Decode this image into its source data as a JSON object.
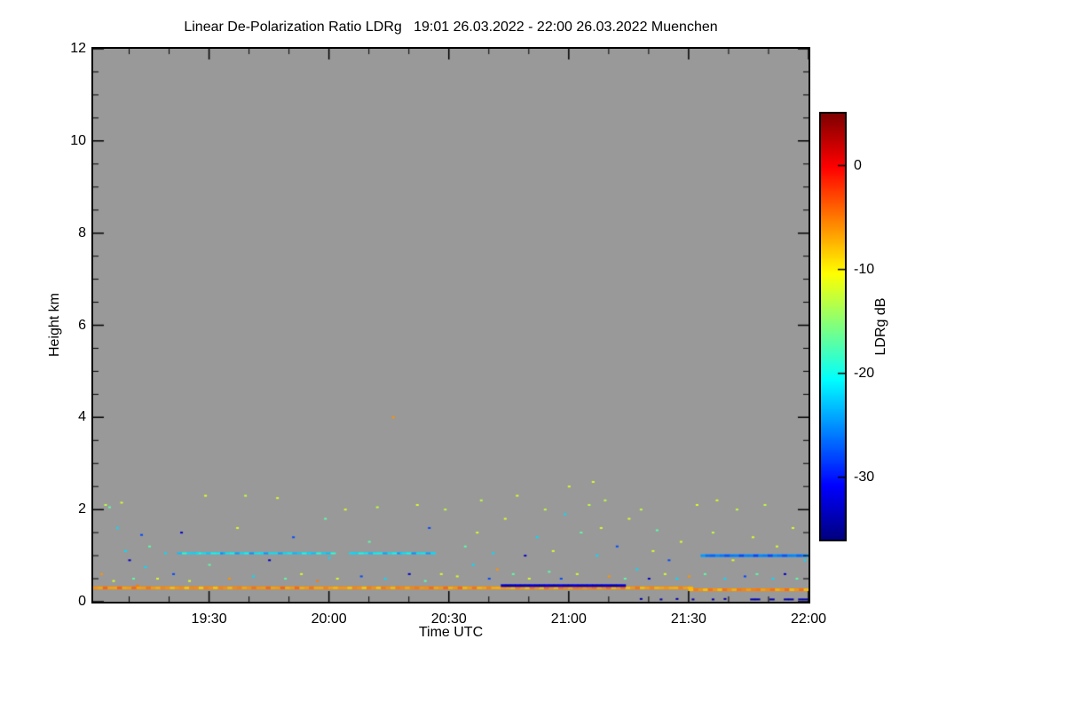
{
  "chart_data": {
    "type": "heatmap",
    "title": "Linear De-Polarization Ratio LDRg   19:01 26.03.2022 - 22:00 26.03.2022 Muenchen",
    "xlabel": "Time UTC",
    "ylabel": "Height km",
    "colorbar_label": "LDRg dB",
    "time_start_utc": "19:01",
    "time_end_utc": "22:00",
    "date": "26.03.2022",
    "station": "Muenchen",
    "no_data_color": "#999999",
    "colormap": "jet",
    "x_axis": {
      "unit": "minutes since 19:01 UTC",
      "min": 0,
      "max": 179,
      "major_ticks": [
        {
          "minutes": 29,
          "label": "19:30"
        },
        {
          "minutes": 59,
          "label": "20:00"
        },
        {
          "minutes": 89,
          "label": "20:30"
        },
        {
          "minutes": 119,
          "label": "21:00"
        },
        {
          "minutes": 149,
          "label": "21:30"
        },
        {
          "minutes": 179,
          "label": "22:00"
        }
      ],
      "minor_tick_every_min": 10
    },
    "y_axis": {
      "unit": "km",
      "min": 0,
      "max": 12,
      "major_ticks": [
        {
          "km": 0,
          "label": "0"
        },
        {
          "km": 2,
          "label": "2"
        },
        {
          "km": 4,
          "label": "4"
        },
        {
          "km": 6,
          "label": "6"
        },
        {
          "km": 8,
          "label": "8"
        },
        {
          "km": 10,
          "label": "10"
        },
        {
          "km": 12,
          "label": "12"
        }
      ],
      "minor_tick_every_km": 0.5
    },
    "colorbar": {
      "min_db": -36,
      "max_db": 5,
      "ticks": [
        {
          "db": 0,
          "label": "0"
        },
        {
          "db": -10,
          "label": "-10"
        },
        {
          "db": -20,
          "label": "-20"
        },
        {
          "db": -30,
          "label": "-30"
        }
      ]
    },
    "layers": [
      {
        "name": "surface-aerosol-line",
        "height_km": 0.3,
        "t0_min": 0,
        "t1_min": 149,
        "db": -6,
        "thickness_px": 3,
        "jitter_db": 2,
        "dashed": false
      },
      {
        "name": "surface-aerosol-line-late",
        "height_km": 0.26,
        "t0_min": 149,
        "t1_min": 179,
        "db": -6,
        "thickness_px": 3,
        "jitter_db": 2,
        "dashed": false
      },
      {
        "name": "dark-blue-band",
        "height_km": 0.35,
        "t0_min": 102,
        "t1_min": 133,
        "db": -33,
        "thickness_px": 3,
        "jitter_db": 1,
        "dashed": false
      },
      {
        "name": "cyan-layer-a",
        "height_km": 1.05,
        "t0_min": 21,
        "t1_min": 60,
        "db": -22,
        "thickness_px": 2,
        "jitter_db": 3,
        "dashed": false
      },
      {
        "name": "cyan-layer-b",
        "height_km": 1.05,
        "t0_min": 64,
        "t1_min": 85,
        "db": -22,
        "thickness_px": 2,
        "jitter_db": 3,
        "dashed": false
      },
      {
        "name": "cyan-layer-late",
        "height_km": 1.0,
        "t0_min": 152,
        "t1_min": 179,
        "db": -26,
        "thickness_px": 3,
        "jitter_db": 2,
        "dashed": false
      },
      {
        "name": "near-ground-dark-line",
        "height_km": 0.05,
        "t0_min": 162,
        "t1_min": 179,
        "db": -34,
        "thickness_px": 2,
        "jitter_db": 0,
        "dashed": true
      }
    ],
    "speckles_t_h_db": [
      [
        2,
        0.6,
        -6
      ],
      [
        3,
        2.1,
        -13
      ],
      [
        4,
        2.05,
        -17
      ],
      [
        5,
        0.45,
        -12
      ],
      [
        6,
        1.6,
        -22
      ],
      [
        7,
        2.15,
        -12
      ],
      [
        8,
        1.1,
        -22
      ],
      [
        9,
        0.9,
        -33
      ],
      [
        10,
        0.5,
        -17
      ],
      [
        11,
        0.35,
        -5
      ],
      [
        12,
        1.45,
        -28
      ],
      [
        13,
        0.75,
        -22
      ],
      [
        14,
        1.2,
        -17
      ],
      [
        16,
        0.5,
        -12
      ],
      [
        18,
        1.05,
        -22
      ],
      [
        20,
        0.6,
        -28
      ],
      [
        22,
        1.5,
        -33
      ],
      [
        24,
        0.45,
        -12
      ],
      [
        26,
        1.05,
        -22
      ],
      [
        28,
        2.3,
        -12
      ],
      [
        29,
        0.8,
        -17
      ],
      [
        32,
        1.05,
        -25
      ],
      [
        34,
        0.5,
        -6
      ],
      [
        36,
        1.6,
        -12
      ],
      [
        38,
        2.3,
        -13
      ],
      [
        40,
        0.55,
        -22
      ],
      [
        42,
        1.05,
        -22
      ],
      [
        44,
        0.9,
        -33
      ],
      [
        46,
        2.25,
        -12
      ],
      [
        48,
        0.5,
        -17
      ],
      [
        50,
        1.4,
        -28
      ],
      [
        52,
        0.6,
        -12
      ],
      [
        54,
        1.05,
        -22
      ],
      [
        56,
        0.45,
        -5
      ],
      [
        58,
        1.8,
        -17
      ],
      [
        59,
        0.95,
        -22
      ],
      [
        61,
        0.5,
        -12
      ],
      [
        63,
        2.0,
        -12
      ],
      [
        65,
        1.05,
        -22
      ],
      [
        67,
        0.55,
        -28
      ],
      [
        69,
        1.3,
        -17
      ],
      [
        71,
        2.05,
        -13
      ],
      [
        73,
        0.5,
        -22
      ],
      [
        75,
        4.0,
        -6
      ],
      [
        77,
        1.05,
        -22
      ],
      [
        79,
        0.6,
        -33
      ],
      [
        81,
        2.1,
        -12
      ],
      [
        83,
        0.45,
        -17
      ],
      [
        84,
        1.6,
        -28
      ],
      [
        85,
        1.05,
        -22
      ],
      [
        87,
        0.6,
        -12
      ],
      [
        88,
        2.0,
        -13
      ],
      [
        91,
        0.55,
        -12
      ],
      [
        93,
        1.2,
        -17
      ],
      [
        95,
        0.8,
        -22
      ],
      [
        96,
        1.5,
        -12
      ],
      [
        97,
        2.2,
        -13
      ],
      [
        99,
        0.5,
        -28
      ],
      [
        100,
        1.05,
        -22
      ],
      [
        101,
        0.7,
        -6
      ],
      [
        103,
        1.8,
        -12
      ],
      [
        105,
        0.6,
        -17
      ],
      [
        106,
        2.3,
        -12
      ],
      [
        108,
        1.0,
        -33
      ],
      [
        109,
        0.5,
        -12
      ],
      [
        111,
        1.4,
        -22
      ],
      [
        113,
        2.0,
        -13
      ],
      [
        114,
        0.65,
        -17
      ],
      [
        115,
        1.1,
        -12
      ],
      [
        117,
        0.5,
        -28
      ],
      [
        118,
        1.9,
        -22
      ],
      [
        119,
        2.5,
        -12
      ],
      [
        121,
        0.6,
        -12
      ],
      [
        122,
        1.5,
        -17
      ],
      [
        124,
        2.1,
        -13
      ],
      [
        125,
        2.6,
        -12
      ],
      [
        126,
        1.0,
        -22
      ],
      [
        127,
        1.6,
        -12
      ],
      [
        128,
        2.2,
        -13
      ],
      [
        129,
        0.55,
        -6
      ],
      [
        131,
        1.2,
        -28
      ],
      [
        133,
        0.5,
        -17
      ],
      [
        134,
        1.8,
        -12
      ],
      [
        136,
        0.7,
        -22
      ],
      [
        137,
        2.0,
        -13
      ],
      [
        137,
        0.06,
        -34
      ],
      [
        139,
        0.5,
        -33
      ],
      [
        140,
        1.1,
        -12
      ],
      [
        141,
        1.55,
        -17
      ],
      [
        142,
        0.05,
        -34
      ],
      [
        143,
        0.6,
        -12
      ],
      [
        144,
        0.9,
        -28
      ],
      [
        146,
        0.5,
        -22
      ],
      [
        146,
        0.06,
        -34
      ],
      [
        147,
        1.3,
        -12
      ],
      [
        149,
        0.55,
        -6
      ],
      [
        150,
        0.05,
        -34
      ],
      [
        151,
        2.1,
        -12
      ],
      [
        153,
        0.6,
        -17
      ],
      [
        155,
        1.5,
        -13
      ],
      [
        155,
        0.05,
        -34
      ],
      [
        156,
        2.2,
        -12
      ],
      [
        158,
        0.5,
        -22
      ],
      [
        158,
        0.06,
        -34
      ],
      [
        160,
        0.9,
        -12
      ],
      [
        161,
        2.0,
        -13
      ],
      [
        163,
        0.55,
        -28
      ],
      [
        165,
        1.4,
        -12
      ],
      [
        166,
        0.6,
        -17
      ],
      [
        168,
        2.1,
        -13
      ],
      [
        170,
        0.5,
        -22
      ],
      [
        171,
        1.2,
        -12
      ],
      [
        173,
        0.6,
        -33
      ],
      [
        175,
        1.6,
        -12
      ],
      [
        176,
        0.5,
        -17
      ],
      [
        178,
        0.9,
        -22
      ]
    ]
  }
}
